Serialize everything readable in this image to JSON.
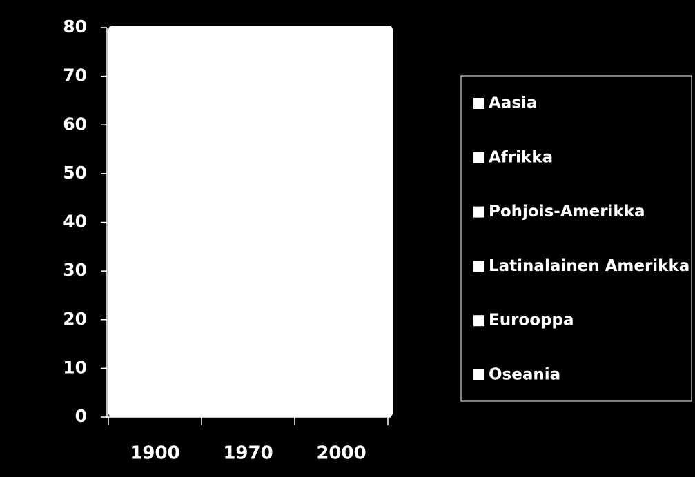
{
  "chart_data": {
    "type": "bar",
    "categories": [
      "1900",
      "1970",
      "2000"
    ],
    "series": [
      {
        "name": "Aasia",
        "color": "#ffffff",
        "values": [
          null,
          null,
          null
        ]
      },
      {
        "name": "Afrikka",
        "color": "#ffffff",
        "values": [
          null,
          null,
          null
        ]
      },
      {
        "name": "Pohjois-Amerikka",
        "color": "#ffffff",
        "values": [
          null,
          null,
          null
        ]
      },
      {
        "name": "Latinalainen Amerikka",
        "color": "#ffffff",
        "values": [
          null,
          null,
          null
        ]
      },
      {
        "name": "Eurooppa",
        "color": "#ffffff",
        "values": [
          null,
          null,
          null
        ]
      },
      {
        "name": "Oseania",
        "color": "#ffffff",
        "values": [
          null,
          null,
          null
        ]
      }
    ],
    "ylim": [
      0,
      80
    ],
    "yticks": [
      0,
      10,
      20,
      30,
      40,
      50,
      60,
      70,
      80
    ],
    "legend": "right"
  }
}
